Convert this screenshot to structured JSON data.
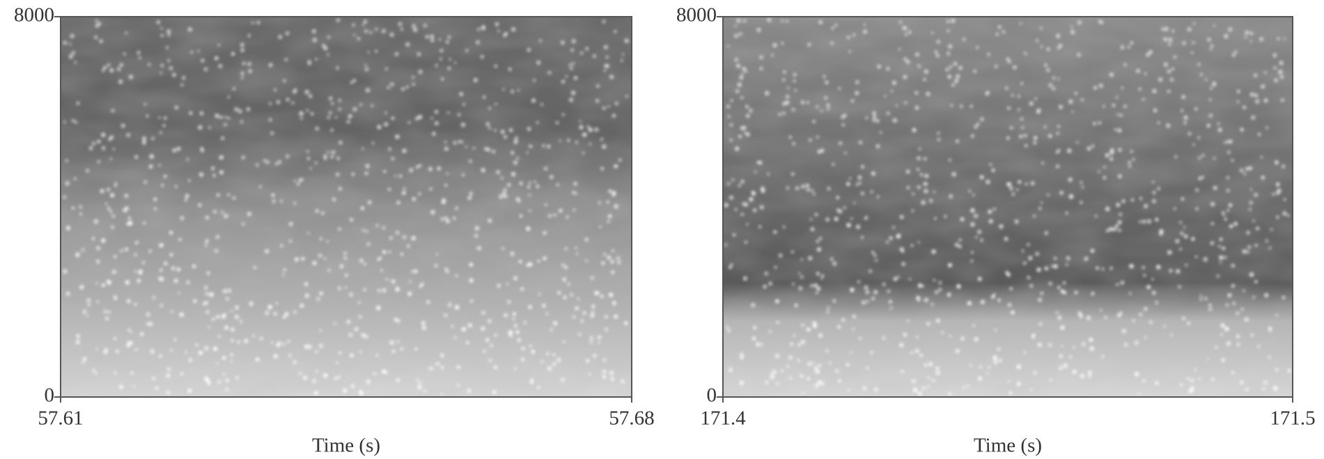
{
  "chart_data": [
    {
      "type": "spectrogram",
      "xlabel": "Time (s)",
      "xlim": [
        57.61,
        57.68
      ],
      "ylim": [
        0,
        8000
      ],
      "xticks": [
        57.61,
        57.68
      ],
      "yticks": [
        0,
        8000
      ]
    },
    {
      "type": "spectrogram",
      "xlabel": "Time (s)",
      "xlim": [
        171.4,
        171.5
      ],
      "ylim": [
        0,
        8000
      ],
      "xticks": [
        171.4,
        171.5
      ],
      "yticks": [
        0,
        8000
      ]
    }
  ]
}
